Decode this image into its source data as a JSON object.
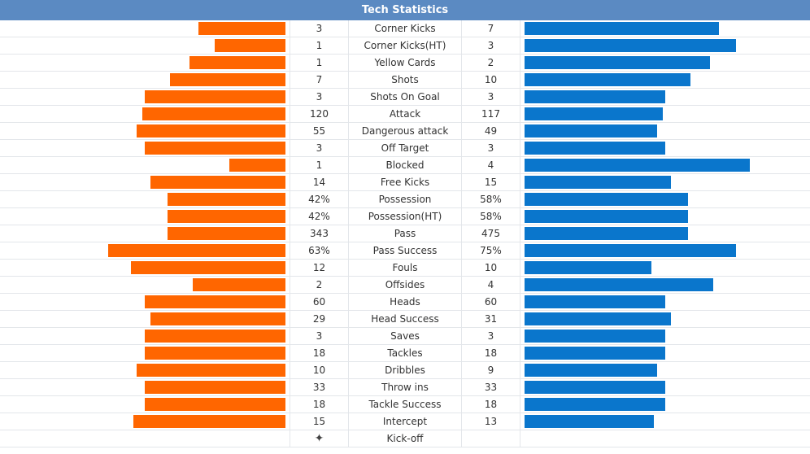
{
  "title": "Tech Statistics",
  "colors": {
    "header": "#5b8ac2",
    "home_bar": "#ff6600",
    "away_bar": "#0a76cc"
  },
  "stats": [
    {
      "label": "Corner Kicks",
      "home": "3",
      "away": "7",
      "home_level": 0.31,
      "away_level": 0.69
    },
    {
      "label": "Corner Kicks(HT)",
      "home": "1",
      "away": "3",
      "home_level": 0.25,
      "away_level": 0.75
    },
    {
      "label": "Yellow Cards",
      "home": "1",
      "away": "2",
      "home_level": 0.34,
      "away_level": 0.66
    },
    {
      "label": "Shots",
      "home": "7",
      "away": "10",
      "home_level": 0.41,
      "away_level": 0.59
    },
    {
      "label": "Shots On Goal",
      "home": "3",
      "away": "3",
      "home_level": 0.5,
      "away_level": 0.5
    },
    {
      "label": "Attack",
      "home": "120",
      "away": "117",
      "home_level": 0.51,
      "away_level": 0.49
    },
    {
      "label": "Dangerous attack",
      "home": "55",
      "away": "49",
      "home_level": 0.53,
      "away_level": 0.47
    },
    {
      "label": "Off Target",
      "home": "3",
      "away": "3",
      "home_level": 0.5,
      "away_level": 0.5
    },
    {
      "label": "Blocked",
      "home": "1",
      "away": "4",
      "home_level": 0.2,
      "away_level": 0.8
    },
    {
      "label": "Free Kicks",
      "home": "14",
      "away": "15",
      "home_level": 0.48,
      "away_level": 0.52
    },
    {
      "label": "Possession",
      "home": "42%",
      "away": "58%",
      "home_level": 0.42,
      "away_level": 0.58
    },
    {
      "label": "Possession(HT)",
      "home": "42%",
      "away": "58%",
      "home_level": 0.42,
      "away_level": 0.58
    },
    {
      "label": "Pass",
      "home": "343",
      "away": "475",
      "home_level": 0.42,
      "away_level": 0.58
    },
    {
      "label": "Pass Success",
      "home": "63%",
      "away": "75%",
      "home_level": 0.63,
      "away_level": 0.75
    },
    {
      "label": "Fouls",
      "home": "12",
      "away": "10",
      "home_level": 0.55,
      "away_level": 0.45
    },
    {
      "label": "Offsides",
      "home": "2",
      "away": "4",
      "home_level": 0.33,
      "away_level": 0.67
    },
    {
      "label": "Heads",
      "home": "60",
      "away": "60",
      "home_level": 0.5,
      "away_level": 0.5
    },
    {
      "label": "Head Success",
      "home": "29",
      "away": "31",
      "home_level": 0.48,
      "away_level": 0.52
    },
    {
      "label": "Saves",
      "home": "3",
      "away": "3",
      "home_level": 0.5,
      "away_level": 0.5
    },
    {
      "label": "Tackles",
      "home": "18",
      "away": "18",
      "home_level": 0.5,
      "away_level": 0.5
    },
    {
      "label": "Dribbles",
      "home": "10",
      "away": "9",
      "home_level": 0.53,
      "away_level": 0.47
    },
    {
      "label": "Throw ins",
      "home": "33",
      "away": "33",
      "home_level": 0.5,
      "away_level": 0.5
    },
    {
      "label": "Tackle Success",
      "home": "18",
      "away": "18",
      "home_level": 0.5,
      "away_level": 0.5
    },
    {
      "label": "Intercept",
      "home": "15",
      "away": "13",
      "home_level": 0.54,
      "away_level": 0.46
    }
  ],
  "kickoff": {
    "label": "Kick-off",
    "icon": "ball-icon",
    "symbol": "✦"
  }
}
